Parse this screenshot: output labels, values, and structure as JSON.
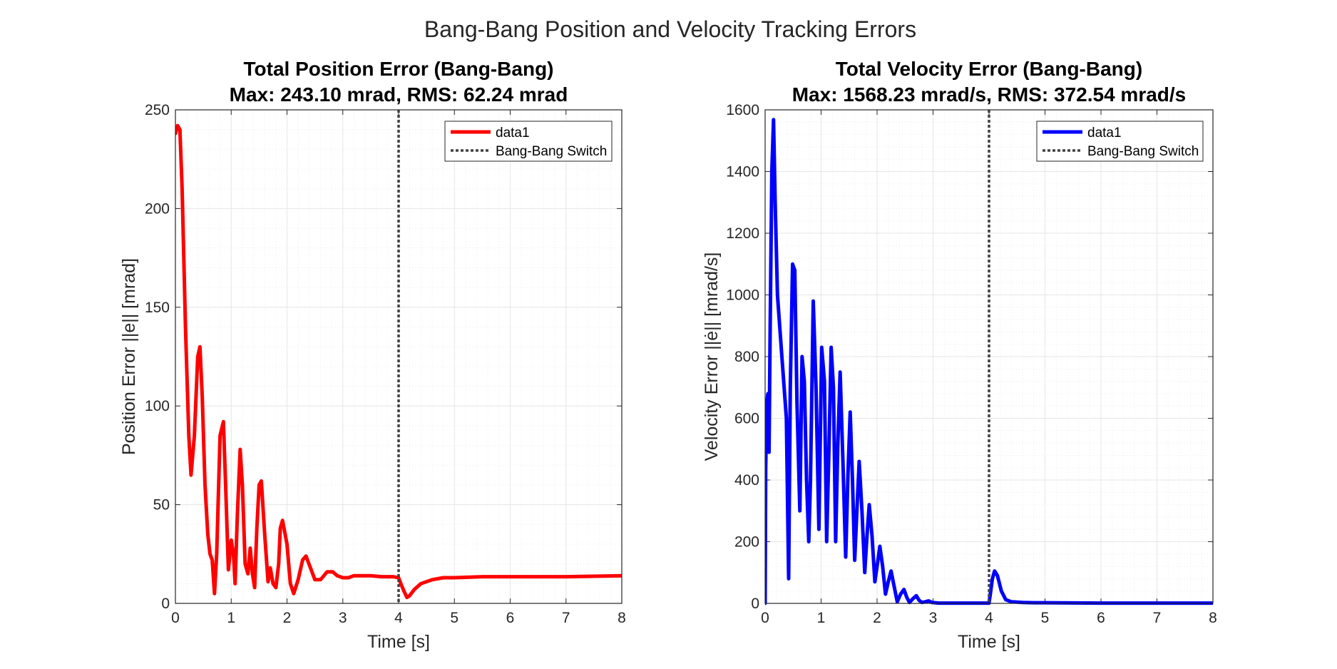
{
  "figure": {
    "title": "Bang-Bang Position and Velocity Tracking Errors"
  },
  "chart_data": [
    {
      "type": "line",
      "title": "Total Position Error (Bang-Bang)",
      "subtitle": "Max: 243.10 mrad, RMS: 62.24 mrad",
      "xlabel": "Time [s]",
      "ylabel": "Position Error ||e|| [mrad]",
      "xlim": [
        0,
        8
      ],
      "ylim": [
        0,
        250
      ],
      "xticks": [
        0,
        1,
        2,
        3,
        4,
        5,
        6,
        7,
        8
      ],
      "yticks": [
        0,
        50,
        100,
        150,
        200,
        250
      ],
      "grid": true,
      "minor_grid": true,
      "legend_position": "top-right",
      "switch_time": 4,
      "series": [
        {
          "name": "data1",
          "color": "#ff0000",
          "x": [
            0,
            0.04,
            0.08,
            0.12,
            0.18,
            0.24,
            0.28,
            0.34,
            0.4,
            0.44,
            0.48,
            0.53,
            0.58,
            0.62,
            0.66,
            0.7,
            0.74,
            0.8,
            0.86,
            0.9,
            0.95,
            1.0,
            1.04,
            1.07,
            1.11,
            1.16,
            1.2,
            1.25,
            1.3,
            1.34,
            1.38,
            1.42,
            1.46,
            1.5,
            1.54,
            1.6,
            1.66,
            1.7,
            1.75,
            1.8,
            1.85,
            1.88,
            1.92,
            2.0,
            2.06,
            2.12,
            2.2,
            2.28,
            2.34,
            2.42,
            2.5,
            2.6,
            2.72,
            2.82,
            2.9,
            3.0,
            3.1,
            3.2,
            3.35,
            3.5,
            3.7,
            3.9,
            4.0,
            4.04,
            4.1,
            4.15,
            4.2,
            4.28,
            4.4,
            4.6,
            4.8,
            5.0,
            5.5,
            6.0,
            7.0,
            8.0
          ],
          "y": [
            238,
            242,
            240,
            210,
            140,
            85,
            65,
            85,
            125,
            130,
            105,
            60,
            35,
            25,
            22,
            5,
            25,
            85,
            92,
            60,
            17,
            32,
            25,
            10,
            45,
            78,
            60,
            20,
            15,
            28,
            15,
            8,
            38,
            60,
            62,
            35,
            11,
            18,
            10,
            8,
            20,
            38,
            42,
            30,
            10,
            5,
            12,
            22,
            24,
            18,
            12,
            12,
            16,
            16,
            14,
            13,
            13,
            14,
            14,
            14,
            13.5,
            13.5,
            13,
            10,
            6,
            3,
            4,
            7,
            10,
            12,
            13,
            13,
            13.5,
            13.5,
            13.5,
            14
          ]
        }
      ]
    },
    {
      "type": "line",
      "title": "Total Velocity Error (Bang-Bang)",
      "subtitle": "Max: 1568.23 mrad/s, RMS: 372.54 mrad/s",
      "xlabel": "Time [s]",
      "ylabel": "Velocity Error ||ė|| [mrad/s]",
      "xlim": [
        0,
        8
      ],
      "ylim": [
        0,
        1600
      ],
      "xticks": [
        0,
        1,
        2,
        3,
        4,
        5,
        6,
        7,
        8
      ],
      "yticks": [
        0,
        200,
        400,
        600,
        800,
        1000,
        1200,
        1400,
        1600
      ],
      "grid": true,
      "minor_grid": true,
      "legend_position": "top-right",
      "switch_time": 4,
      "series": [
        {
          "name": "data1",
          "color": "#0000ff",
          "x": [
            0,
            0.01,
            0.03,
            0.05,
            0.07,
            0.09,
            0.12,
            0.15,
            0.18,
            0.22,
            0.3,
            0.38,
            0.42,
            0.45,
            0.49,
            0.53,
            0.57,
            0.62,
            0.66,
            0.7,
            0.74,
            0.78,
            0.81,
            0.86,
            0.91,
            0.96,
            1.01,
            1.06,
            1.1,
            1.14,
            1.18,
            1.22,
            1.26,
            1.3,
            1.34,
            1.39,
            1.44,
            1.48,
            1.52,
            1.56,
            1.6,
            1.64,
            1.68,
            1.73,
            1.78,
            1.82,
            1.86,
            1.91,
            1.96,
            2.0,
            2.05,
            2.1,
            2.15,
            2.2,
            2.25,
            2.3,
            2.36,
            2.42,
            2.48,
            2.53,
            2.58,
            2.64,
            2.7,
            2.75,
            2.8,
            2.86,
            2.92,
            2.98,
            3.04,
            3.1,
            3.2,
            3.3,
            3.4,
            3.5,
            3.7,
            3.9,
            4.0,
            4.03,
            4.06,
            4.1,
            4.15,
            4.22,
            4.3,
            4.4,
            4.6,
            4.8,
            5.0,
            6.0,
            7.0,
            8.0
          ],
          "y": [
            0,
            440,
            650,
            680,
            490,
            900,
            1400,
            1568,
            1300,
            1000,
            800,
            600,
            80,
            700,
            1100,
            1080,
            650,
            300,
            800,
            720,
            400,
            200,
            400,
            980,
            700,
            240,
            830,
            720,
            200,
            500,
            830,
            700,
            200,
            520,
            750,
            460,
            150,
            420,
            620,
            400,
            140,
            300,
            460,
            300,
            100,
            220,
            320,
            220,
            70,
            120,
            185,
            120,
            30,
            70,
            105,
            60,
            5,
            30,
            45,
            20,
            3,
            15,
            25,
            10,
            3,
            5,
            8,
            3,
            2,
            1,
            1,
            1,
            1,
            1,
            1,
            1,
            1,
            40,
            80,
            105,
            90,
            40,
            12,
            5,
            3,
            2,
            2,
            1,
            1,
            1
          ]
        }
      ]
    }
  ],
  "legend": {
    "series_label": "data1",
    "switch_label": "Bang-Bang Switch"
  },
  "colors": {
    "position_line": "#ff0000",
    "velocity_line": "#0000ff",
    "switch_line": "#404040",
    "axes": "#262626",
    "grid": "#e6e6e6"
  }
}
